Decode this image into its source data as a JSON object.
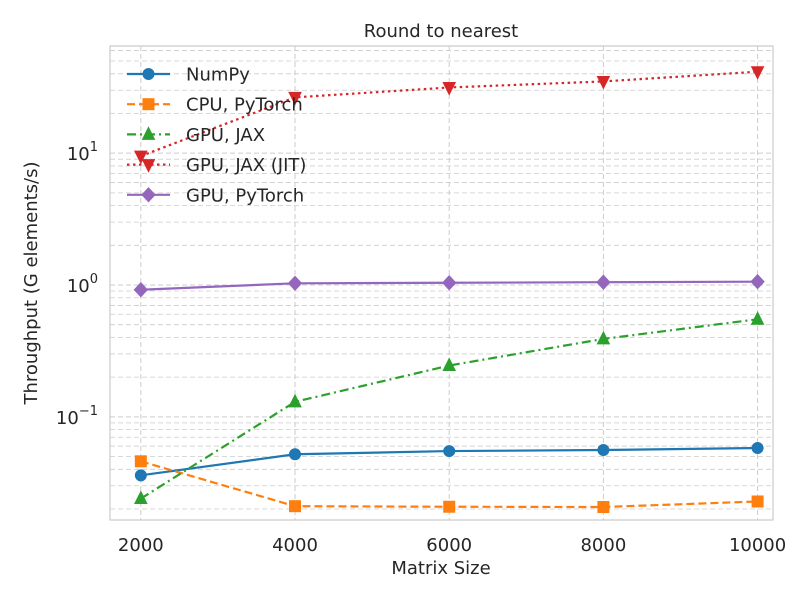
{
  "chart_data": {
    "type": "line",
    "title": "Round to nearest",
    "xlabel": "Matrix Size",
    "ylabel": "Throughput (G elements/s)",
    "yscale": "log",
    "xlim": [
      1600,
      10200
    ],
    "ylim": [
      0.0165,
      65
    ],
    "x": [
      2000,
      4000,
      6000,
      8000,
      10000
    ],
    "x_ticks": [
      {
        "value": 2000,
        "label": "2000"
      },
      {
        "value": 4000,
        "label": "4000"
      },
      {
        "value": 6000,
        "label": "6000"
      },
      {
        "value": 8000,
        "label": "8000"
      },
      {
        "value": 10000,
        "label": "10000"
      }
    ],
    "y_ticks": [
      {
        "value": 0.1,
        "base": "10",
        "exp": "−1"
      },
      {
        "value": 1,
        "base": "10",
        "exp": "0"
      },
      {
        "value": 10,
        "base": "10",
        "exp": "1"
      }
    ],
    "grid": true,
    "legend_position": "top-left",
    "series": [
      {
        "name": "NumPy",
        "color": "#1f77b4",
        "dash": "solid",
        "marker": "circle",
        "values": [
          0.036,
          0.052,
          0.055,
          0.056,
          0.058
        ]
      },
      {
        "name": "CPU, PyTorch",
        "color": "#ff7f0e",
        "dash": "dashed",
        "marker": "square",
        "values": [
          0.046,
          0.021,
          0.0208,
          0.0207,
          0.0228
        ]
      },
      {
        "name": "GPU, JAX",
        "color": "#2ca02c",
        "dash": "dashdot",
        "marker": "triangle-up",
        "values": [
          0.024,
          0.13,
          0.245,
          0.39,
          0.55
        ]
      },
      {
        "name": "GPU, JAX (JIT)",
        "color": "#d62728",
        "dash": "dotted",
        "marker": "triangle-down",
        "values": [
          9.5,
          26.5,
          31.5,
          35.0,
          41.5
        ]
      },
      {
        "name": "GPU, PyTorch",
        "color": "#9467bd",
        "dash": "solid",
        "marker": "diamond",
        "values": [
          0.92,
          1.03,
          1.04,
          1.05,
          1.06
        ]
      }
    ]
  }
}
